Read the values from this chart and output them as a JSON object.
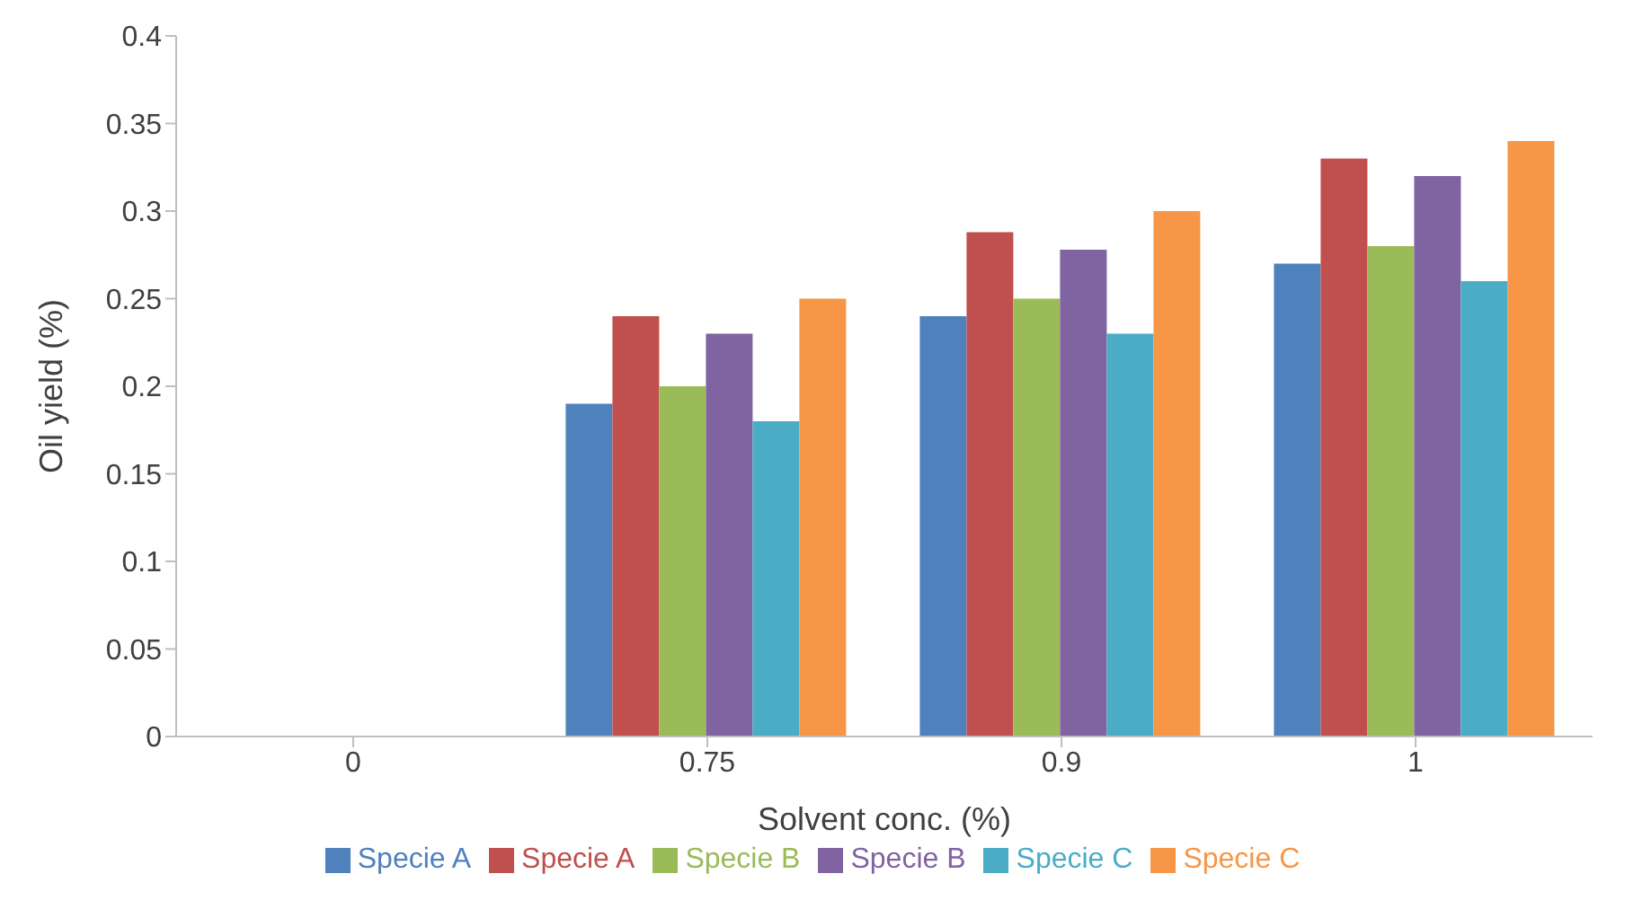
{
  "chart_data": {
    "type": "bar",
    "xlabel": "Solvent conc. (%)",
    "ylabel": "Oil yield (%)",
    "categories": [
      "0",
      "0.75",
      "0.9",
      "1"
    ],
    "series": [
      {
        "name": "Specie A",
        "color": "#4f81bd",
        "values": [
          0,
          0.19,
          0.24,
          0.27
        ]
      },
      {
        "name": "Specie A",
        "color": "#c0504d",
        "values": [
          0,
          0.24,
          0.288,
          0.33
        ]
      },
      {
        "name": "Specie B",
        "color": "#9bbb59",
        "values": [
          0,
          0.2,
          0.25,
          0.28
        ]
      },
      {
        "name": "Specie B",
        "color": "#8064a2",
        "values": [
          0,
          0.23,
          0.278,
          0.32
        ]
      },
      {
        "name": "Specie C",
        "color": "#4bacc6",
        "values": [
          0,
          0.18,
          0.23,
          0.26
        ]
      },
      {
        "name": "Specie C",
        "color": "#f79646",
        "values": [
          0,
          0.25,
          0.3,
          0.34
        ]
      }
    ],
    "ylim": [
      0,
      0.4
    ],
    "yticks": [
      0,
      0.05,
      0.1,
      0.15,
      0.2,
      0.25,
      0.3,
      0.35,
      0.4
    ],
    "grid": false,
    "legend": "bottom"
  }
}
